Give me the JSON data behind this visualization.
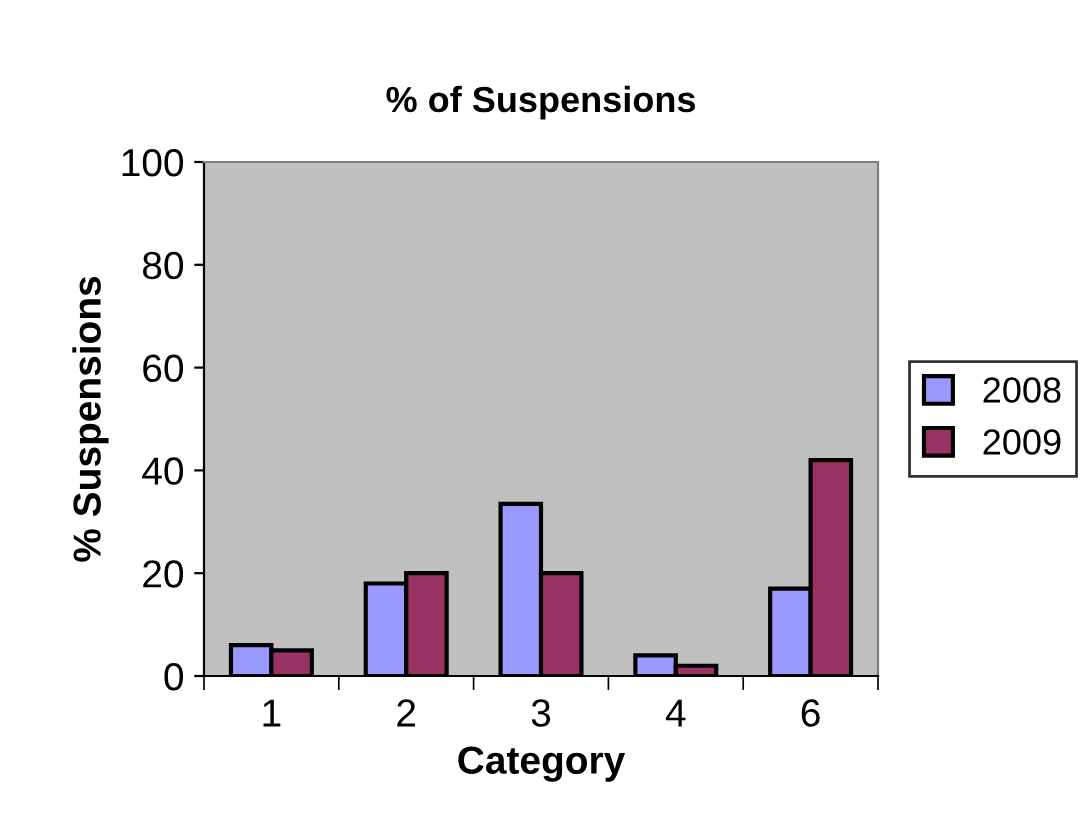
{
  "chart_data": {
    "type": "bar",
    "title": "% of Suspensions",
    "xlabel": "Category",
    "ylabel": "% Suspensions",
    "categories": [
      "1",
      "2",
      "3",
      "4",
      "6"
    ],
    "series": [
      {
        "name": "2008",
        "color": "#9999ff",
        "values": [
          6,
          18,
          33.5,
          4,
          17
        ]
      },
      {
        "name": "2009",
        "color": "#993366",
        "values": [
          5,
          20,
          20,
          2,
          42
        ]
      }
    ],
    "ylim": [
      0,
      100
    ],
    "yticks": [
      0,
      20,
      40,
      60,
      80,
      100
    ],
    "grid": false,
    "legend": "right"
  }
}
